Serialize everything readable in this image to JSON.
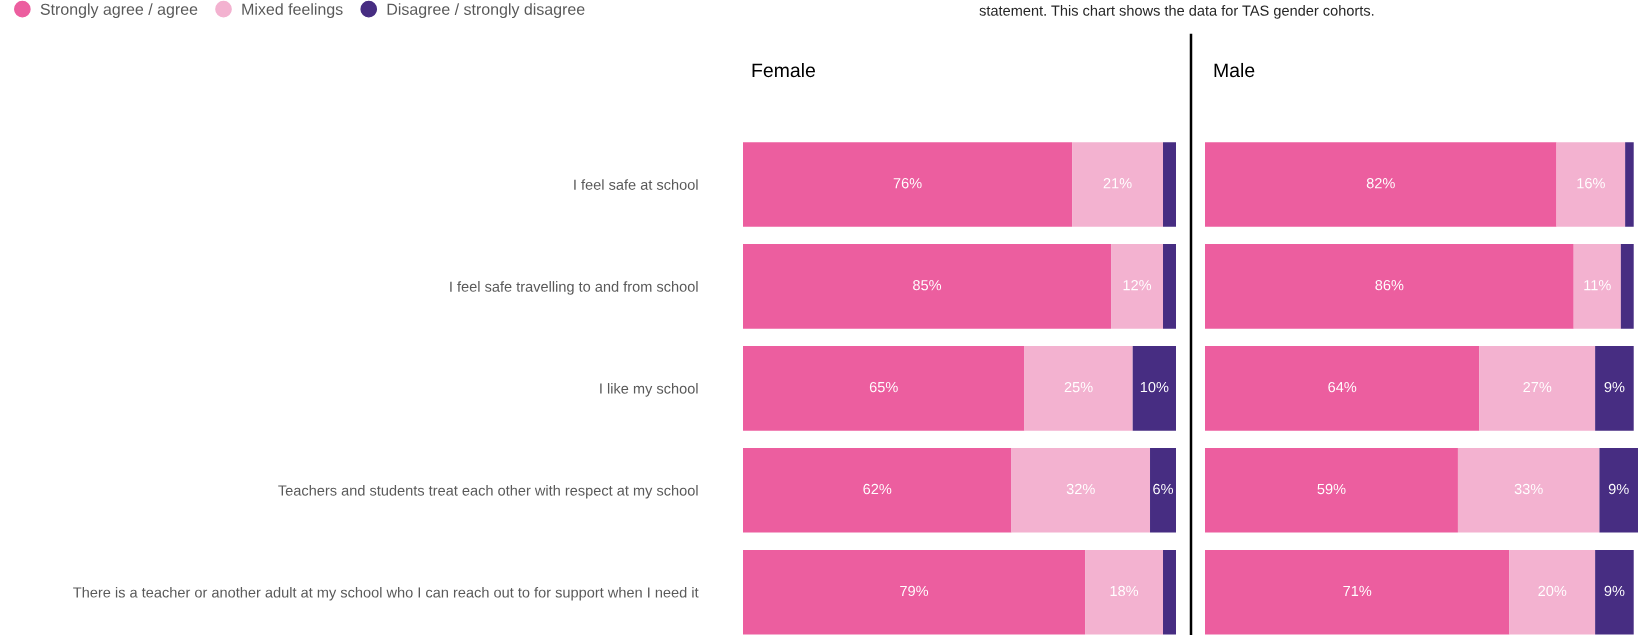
{
  "chart_data": [
    {
      "type": "bar",
      "orientation": "horizontal",
      "stacked": true,
      "title": "Female",
      "legend": "top left",
      "annotations": [
        "statement. This chart shows the data for TAS gender cohorts."
      ],
      "categories": [
        "I feel safe at school",
        "I feel safe travelling to and from school",
        "I like my school",
        "Teachers and students treat each other with respect at my school",
        "There is a teacher or another adult at my school who I can reach out to for support when I need it"
      ],
      "xlim": [
        0,
        100
      ],
      "tick_labels": "y",
      "series": [
        {
          "name": "Strongly agree / agree",
          "color": "#ec5e9f",
          "values": [
            76,
            85,
            65,
            62,
            79
          ],
          "value_labels": [
            "76%",
            "85%",
            "65%",
            "62%",
            "79%"
          ]
        },
        {
          "name": "Mixed feelings",
          "color": "#f3b2d0",
          "values": [
            21,
            12,
            25,
            32,
            18
          ],
          "value_labels": [
            "21%",
            "12%",
            "25%",
            "32%",
            "18%"
          ]
        },
        {
          "name": "Disagree / strongly disagree",
          "color": "#472d82",
          "values": [
            3,
            3,
            10,
            6,
            3
          ],
          "value_labels": [
            null,
            null,
            "10%",
            "6%",
            null
          ]
        }
      ]
    },
    {
      "type": "bar",
      "orientation": "horizontal",
      "stacked": true,
      "title": "Male",
      "categories": [
        null,
        null,
        null,
        null,
        null
      ],
      "xlim": [
        0,
        101
      ],
      "tick_labels": false,
      "series": [
        {
          "color": "#ec5e9f",
          "values": [
            82,
            86,
            64,
            59,
            71
          ],
          "value_labels": [
            "82%",
            "86%",
            "64%",
            "59%",
            "71%"
          ]
        },
        {
          "color": "#f3b2d0",
          "values": [
            16,
            11,
            27,
            33,
            20
          ],
          "value_labels": [
            "16%",
            "11%",
            "27%",
            "33%",
            "20%"
          ]
        },
        {
          "color": "#472d82",
          "values": [
            2,
            3,
            9,
            9,
            9
          ],
          "value_labels": [
            null,
            null,
            "9%",
            "9%",
            "9%"
          ]
        }
      ]
    }
  ]
}
